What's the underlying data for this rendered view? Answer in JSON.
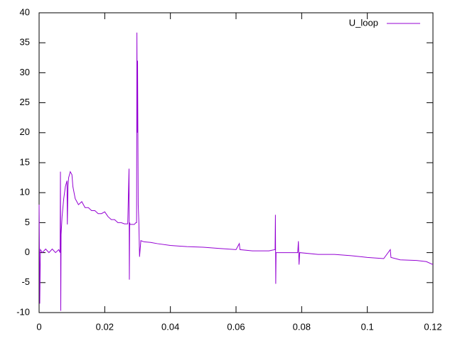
{
  "chart_data": {
    "type": "line",
    "x": [
      0,
      0.0001,
      0.0002,
      0.0004,
      0.001,
      0.002,
      0.003,
      0.004,
      0.005,
      0.006,
      0.0064,
      0.0065,
      0.0066,
      0.0067,
      0.007,
      0.0075,
      0.008,
      0.0085,
      0.0086,
      0.0088,
      0.009,
      0.0095,
      0.01,
      0.0103,
      0.011,
      0.0115,
      0.012,
      0.013,
      0.014,
      0.015,
      0.016,
      0.017,
      0.018,
      0.019,
      0.02,
      0.021,
      0.022,
      0.023,
      0.024,
      0.025,
      0.026,
      0.027,
      0.0274,
      0.0275,
      0.0276,
      0.0277,
      0.028,
      0.029,
      0.0295,
      0.0297,
      0.0298,
      0.0299,
      0.03,
      0.0302,
      0.0304,
      0.0306,
      0.031,
      0.032,
      0.034,
      0.036,
      0.04,
      0.045,
      0.05,
      0.055,
      0.06,
      0.061,
      0.0612,
      0.065,
      0.07,
      0.0719,
      0.072,
      0.0721,
      0.0722,
      0.075,
      0.0788,
      0.079,
      0.0792,
      0.0794,
      0.085,
      0.09,
      0.095,
      0.1,
      0.105,
      0.107,
      0.1072,
      0.11,
      0.115,
      0.118,
      0.12
    ],
    "series": [
      {
        "name": "U_loop",
        "color": "#9400d3",
        "values": [
          8,
          0.5,
          -8.5,
          0.5,
          0,
          0.6,
          0,
          0.6,
          0,
          0.5,
          0,
          13.5,
          -9.7,
          3,
          6,
          9,
          11,
          12,
          4.7,
          11,
          12.5,
          13.5,
          13,
          11,
          9,
          8.5,
          8,
          8.5,
          7.5,
          7.5,
          7,
          7,
          6.5,
          6.5,
          6.8,
          6,
          5.5,
          5.5,
          5,
          5,
          4.8,
          4.8,
          14,
          -4.5,
          5,
          4.7,
          4.7,
          4.7,
          5,
          5,
          36.7,
          20,
          32,
          8,
          5,
          -0.7,
          2,
          1.8,
          1.7,
          1.5,
          1.2,
          1,
          0.9,
          0.7,
          0.5,
          1.5,
          0.5,
          0.3,
          0.3,
          0.5,
          6.3,
          -5.2,
          0,
          0,
          0,
          1.9,
          -2,
          0,
          -0.3,
          -0.3,
          -0.5,
          -0.8,
          -1,
          0.5,
          -0.8,
          -1.2,
          -1.3,
          -1.5,
          -2
        ]
      }
    ],
    "xlim": [
      0,
      0.12
    ],
    "xticks": [
      0,
      0.02,
      0.04,
      0.06,
      0.08,
      0.1,
      0.12
    ],
    "ylim": [
      -10,
      40
    ],
    "yticks": [
      -10,
      -5,
      0,
      5,
      10,
      15,
      20,
      25,
      30,
      35,
      40
    ],
    "legend": "top-right"
  }
}
